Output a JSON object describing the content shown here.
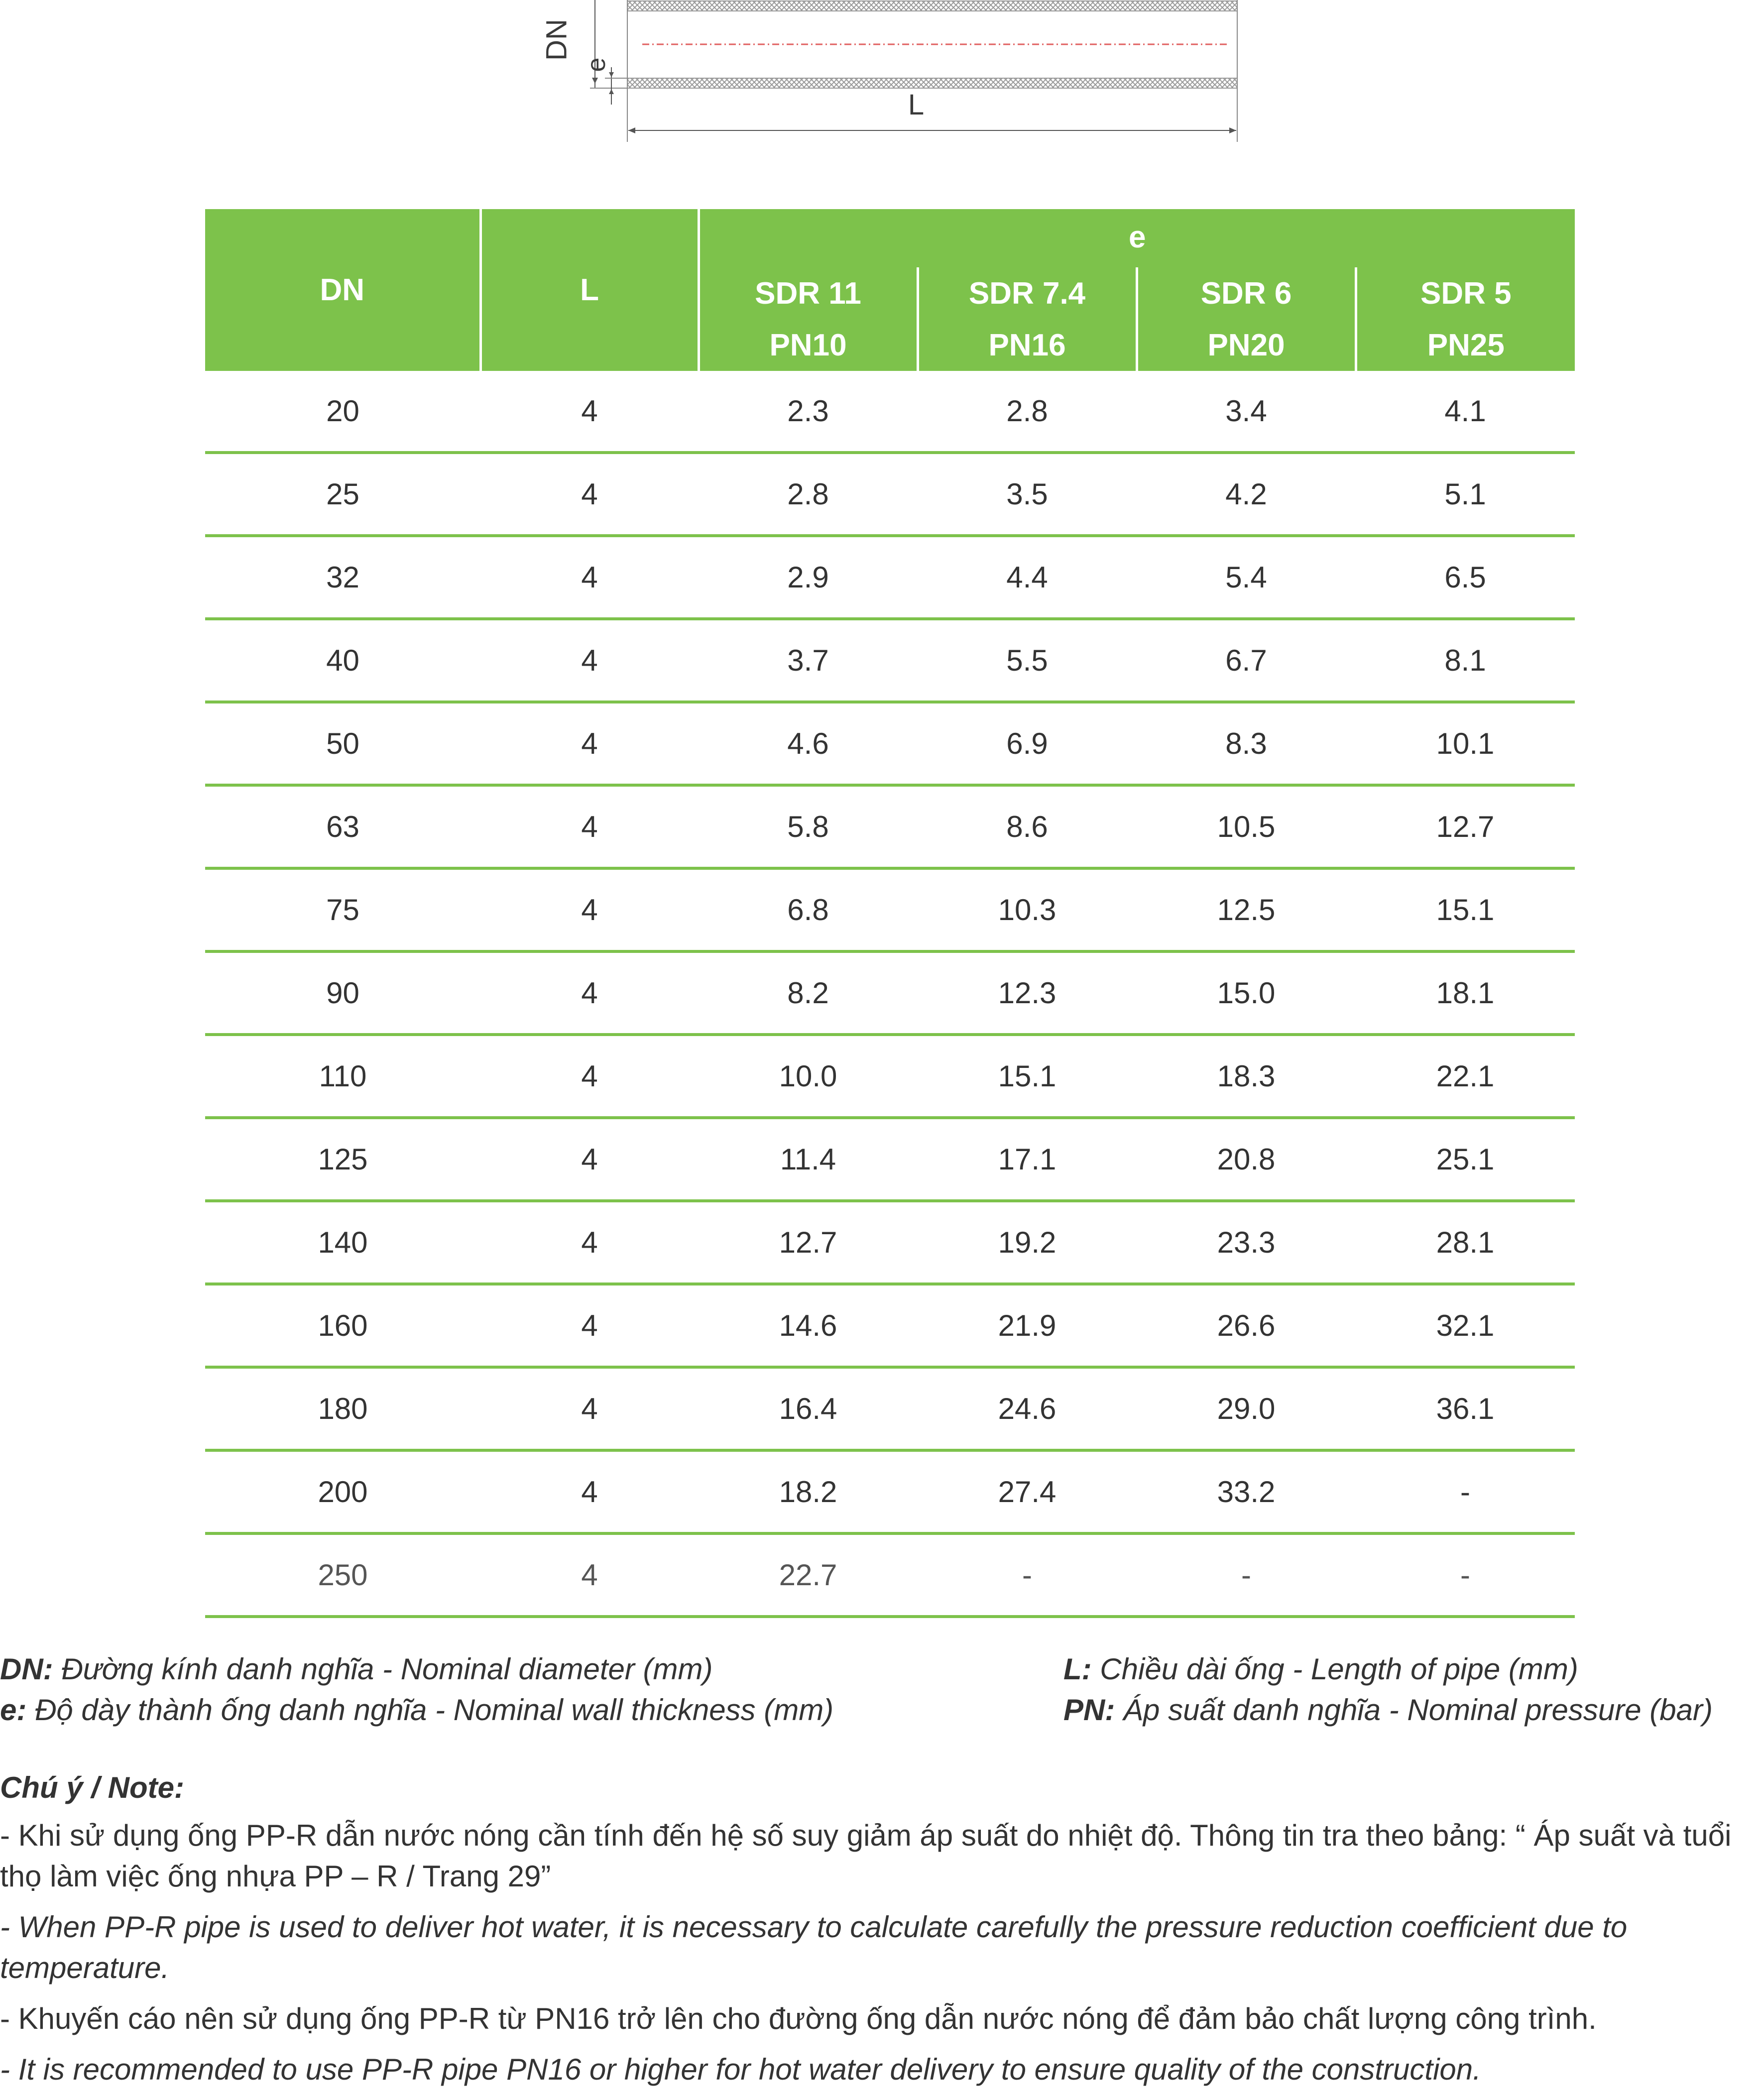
{
  "diagram": {
    "dn_label": "DN",
    "e_label": "e",
    "l_label": "L"
  },
  "table": {
    "header": {
      "dn": "DN",
      "l": "L",
      "e": "e",
      "sdr": [
        "SDR 11",
        "SDR 7.4",
        "SDR 6",
        "SDR 5"
      ],
      "pn": [
        "PN10",
        "PN16",
        "PN20",
        "PN25"
      ]
    },
    "rows": [
      [
        "20",
        "4",
        "2.3",
        "2.8",
        "3.4",
        "4.1"
      ],
      [
        "25",
        "4",
        "2.8",
        "3.5",
        "4.2",
        "5.1"
      ],
      [
        "32",
        "4",
        "2.9",
        "4.4",
        "5.4",
        "6.5"
      ],
      [
        "40",
        "4",
        "3.7",
        "5.5",
        "6.7",
        "8.1"
      ],
      [
        "50",
        "4",
        "4.6",
        "6.9",
        "8.3",
        "10.1"
      ],
      [
        "63",
        "4",
        "5.8",
        "8.6",
        "10.5",
        "12.7"
      ],
      [
        "75",
        "4",
        "6.8",
        "10.3",
        "12.5",
        "15.1"
      ],
      [
        "90",
        "4",
        "8.2",
        "12.3",
        "15.0",
        "18.1"
      ],
      [
        "110",
        "4",
        "10.0",
        "15.1",
        "18.3",
        "22.1"
      ],
      [
        "125",
        "4",
        "11.4",
        "17.1",
        "20.8",
        "25.1"
      ],
      [
        "140",
        "4",
        "12.7",
        "19.2",
        "23.3",
        "28.1"
      ],
      [
        "160",
        "4",
        "14.6",
        "21.9",
        "26.6",
        "32.1"
      ],
      [
        "180",
        "4",
        "16.4",
        "24.6",
        "29.0",
        "36.1"
      ],
      [
        "200",
        "4",
        "18.2",
        "27.4",
        "33.2",
        "-"
      ],
      [
        "250",
        "4",
        "22.7",
        "-",
        "-",
        "-"
      ]
    ]
  },
  "legend": {
    "dn_key": "DN:",
    "dn_text": " Đường kính danh nghĩa - Nominal diameter (mm)",
    "e_key": "e:",
    "e_text": " Độ dày thành ống danh nghĩa - Nominal wall thickness (mm)",
    "l_key": "L:",
    "l_text": " Chiều dài ống - Length of pipe (mm)",
    "pn_key": "PN:",
    "pn_text": " Áp suất danh nghĩa - Nominal pressure (bar)"
  },
  "notes": {
    "title": "Chú ý / Note:",
    "line1": "- Khi sử dụng ống PP-R dẫn nước nóng cần tính đến hệ số suy giảm áp suất do nhiệt độ. Thông tin tra theo bảng: “ Áp suất và tuổi thọ làm việc ống nhựa PP – R / Trang 29”",
    "line2": "- When PP-R pipe is used to deliver hot water, it is necessary to calculate carefully the pressure reduction coefficient due to temperature.",
    "line3": "- Khuyến cáo nên sử dụng ống PP-R từ PN16 trở lên cho đường ống dẫn nước nóng để đảm bảo chất lượng công trình.",
    "line4": "- It is recommended to use PP-R pipe PN16 or higher for hot water delivery to ensure quality of the construction."
  }
}
